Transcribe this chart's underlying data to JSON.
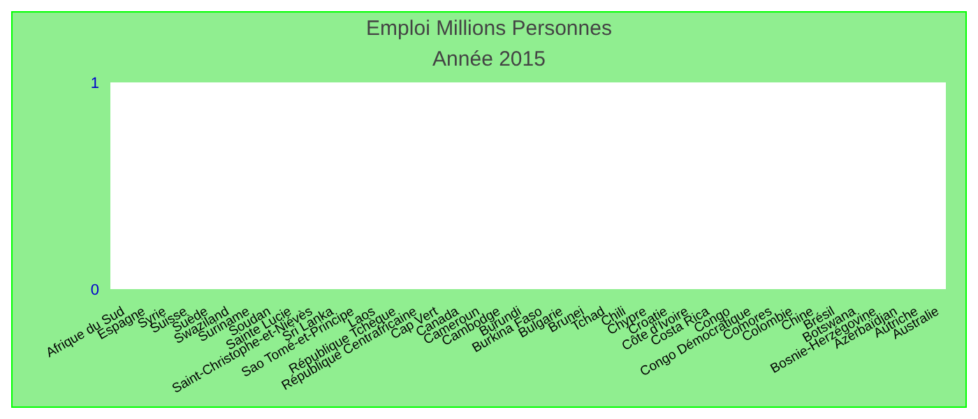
{
  "chart_data": {
    "type": "bar",
    "title": "Emploi Millions Personnes",
    "subtitle": "Année 2015",
    "categories": [
      "Afrique du Sud",
      "Espagne",
      "Syrie",
      "Suisse",
      "Suède",
      "Swaziland",
      "Suriname",
      "Soudan",
      "Sainte Lucie",
      "Saint-Christophe-et-Niévès",
      "Sri Lanka",
      "Sao Tomé-et-Principe",
      "Laos",
      "République Tchèque",
      "République Centrafricaine",
      "Cap Vert",
      "Canada",
      "Cameroun",
      "Cambodge",
      "Burundi",
      "Burkina Faso",
      "Bulgarie",
      "Brunei",
      "Tchad",
      "Chili",
      "Chypre",
      "Croatie",
      "Côte d'Ivoire",
      "Costa Rica",
      "Congo",
      "Congo Démocratique",
      "Comores",
      "Colombie",
      "Chine",
      "Brésil",
      "Botswana",
      "Bosnie-Herzégovine",
      "Azerbaïdjan",
      "Autriche",
      "Australie"
    ],
    "values": [
      null,
      null,
      null,
      null,
      null,
      null,
      null,
      null,
      null,
      null,
      null,
      null,
      null,
      null,
      null,
      null,
      null,
      null,
      null,
      null,
      null,
      null,
      null,
      null,
      null,
      null,
      null,
      null,
      null,
      null,
      null,
      null,
      null,
      null,
      null,
      null,
      null,
      null,
      null,
      null
    ],
    "ylim": [
      0,
      1
    ],
    "yticks": [
      0,
      1
    ],
    "grid": false
  }
}
